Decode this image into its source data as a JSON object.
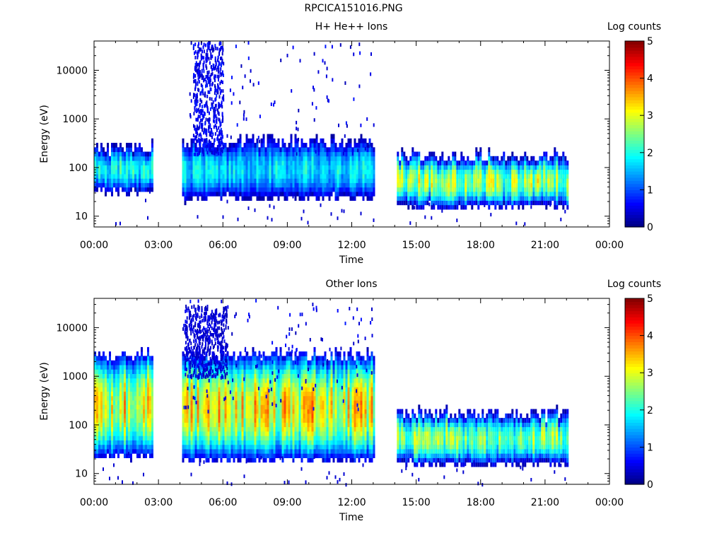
{
  "figure_title": "RPCICA151016.PNG",
  "chart_data": [
    {
      "type": "heatmap",
      "title": "H+ He++ Ions",
      "xlabel": "Time",
      "ylabel": "Energy (eV)",
      "y_scale": "log",
      "xlim_hours": [
        0,
        24
      ],
      "ylim": [
        6,
        40000
      ],
      "x_ticks": [
        "00:00",
        "03:00",
        "06:00",
        "09:00",
        "12:00",
        "15:00",
        "18:00",
        "21:00",
        "00:00"
      ],
      "y_ticks": [
        "10",
        "100",
        "1000",
        "10000"
      ],
      "colorbar": {
        "label": "Log counts",
        "min": 0,
        "max": 5,
        "ticks": [
          "0",
          "1",
          "2",
          "3",
          "4",
          "5"
        ]
      },
      "grid": false,
      "segments": [
        {
          "start_h": 0.0,
          "end_h": 2.7,
          "e_low": 40,
          "e_high": 150,
          "peak_logcounts": 2.3
        },
        {
          "start_h": 4.1,
          "end_h": 13.0,
          "e_low": 30,
          "e_high": 200,
          "peak_logcounts": 2.0
        },
        {
          "start_h": 14.1,
          "end_h": 22.1,
          "e_low": 20,
          "e_high": 100,
          "peak_logcounts": 3.2
        }
      ],
      "high_energy_burst": {
        "start_h": 4.6,
        "end_h": 6.0,
        "e_low": 200,
        "e_high": 40000,
        "peak_logcounts": 0.8
      }
    },
    {
      "type": "heatmap",
      "title": "Other Ions",
      "xlabel": "Time",
      "ylabel": "Energy (eV)",
      "y_scale": "log",
      "xlim_hours": [
        0,
        24
      ],
      "ylim": [
        6,
        40000
      ],
      "x_ticks": [
        "00:00",
        "03:00",
        "06:00",
        "09:00",
        "12:00",
        "15:00",
        "18:00",
        "21:00",
        "00:00"
      ],
      "y_ticks": [
        "10",
        "100",
        "1000",
        "10000"
      ],
      "colorbar": {
        "label": "Log counts",
        "min": 0,
        "max": 5,
        "ticks": [
          "0",
          "1",
          "2",
          "3",
          "4",
          "5"
        ]
      },
      "grid": false,
      "segments": [
        {
          "start_h": 0.0,
          "end_h": 2.7,
          "e_low": 30,
          "e_high": 1500,
          "peak_logcounts": 3.8
        },
        {
          "start_h": 4.1,
          "end_h": 13.0,
          "e_low": 25,
          "e_high": 1500,
          "peak_logcounts": 3.8
        },
        {
          "start_h": 14.1,
          "end_h": 22.1,
          "e_low": 20,
          "e_high": 100,
          "peak_logcounts": 3.0
        }
      ],
      "high_energy_burst": {
        "start_h": 4.2,
        "end_h": 6.2,
        "e_low": 1000,
        "e_high": 30000,
        "peak_logcounts": 0.6
      }
    }
  ]
}
